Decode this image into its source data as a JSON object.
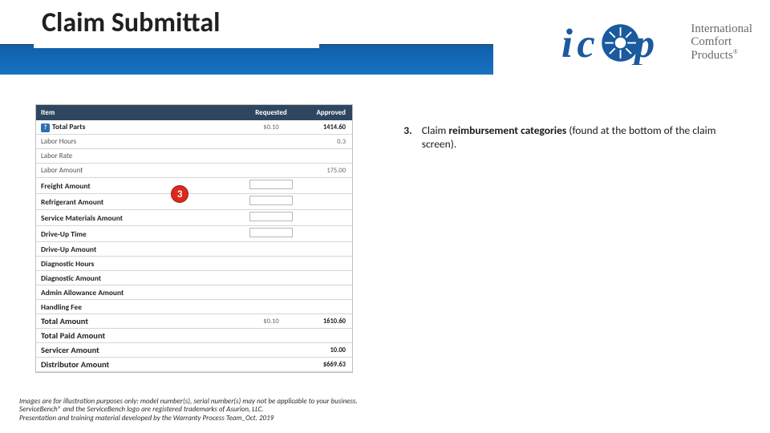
{
  "page": {
    "title": "Claim Submittal"
  },
  "logo": {
    "line1": "International",
    "line2": "Comfort",
    "line3": "Products"
  },
  "colors": {
    "blue_bar": "#1872c3",
    "marker_red": "#d92a1c",
    "table_header": "#2f4661"
  },
  "table": {
    "headers": {
      "item": "Item",
      "requested": "Requested",
      "approved": "Approved"
    },
    "rows": [
      {
        "label": "Total Parts",
        "bold": true,
        "icon": true,
        "requested": "$0.10",
        "approved": "1414.60"
      },
      {
        "label": "Labor Hours",
        "requested": "",
        "approved": "0.3"
      },
      {
        "label": "Labor Rate",
        "requested": "",
        "approved": ""
      },
      {
        "label": "Labor Amount",
        "requested": "",
        "approved": "175.00"
      },
      {
        "label": "Freight Amount",
        "bold": true,
        "input": true
      },
      {
        "label": "Refrigerant Amount",
        "bold": true,
        "input": true
      },
      {
        "label": "Service Materials Amount",
        "bold": true,
        "input": true
      },
      {
        "label": "Drive-Up Time",
        "bold": true,
        "input": true
      },
      {
        "label": "Drive-Up Amount",
        "bold": true
      },
      {
        "label": "Diagnostic Hours",
        "bold": true
      },
      {
        "label": "Diagnostic Amount",
        "bold": true
      },
      {
        "label": "Admin Allowance Amount",
        "bold": true
      },
      {
        "label": "Handling Fee",
        "bold": true
      },
      {
        "label": "Total Amount",
        "bold": true,
        "big": true,
        "requested": "$0.10",
        "approved": "1610.60"
      },
      {
        "label": "Total Paid Amount",
        "bold": true,
        "big": true
      },
      {
        "label": "Servicer Amount",
        "bold": true,
        "big": true,
        "approved": "10.00"
      },
      {
        "label": "Distributor Amount",
        "bold": true,
        "big": true,
        "approved": "$669.63"
      }
    ]
  },
  "marker": {
    "label": "3"
  },
  "body": {
    "num": "3.",
    "text_before": "Claim ",
    "bold": "reimbursement categories ",
    "text_after": "(found at the bottom of the claim screen)."
  },
  "footer": {
    "l1": "Images are for illustration purposes only: model number(s), serial number(s) may not be applicable to your business.",
    "l2": "ServiceBench® and the ServiceBench logo are registered trademarks of Asurion, LLC.",
    "l3": "Presentation and training material developed by the Warranty Process Team_Oct. 2019"
  }
}
